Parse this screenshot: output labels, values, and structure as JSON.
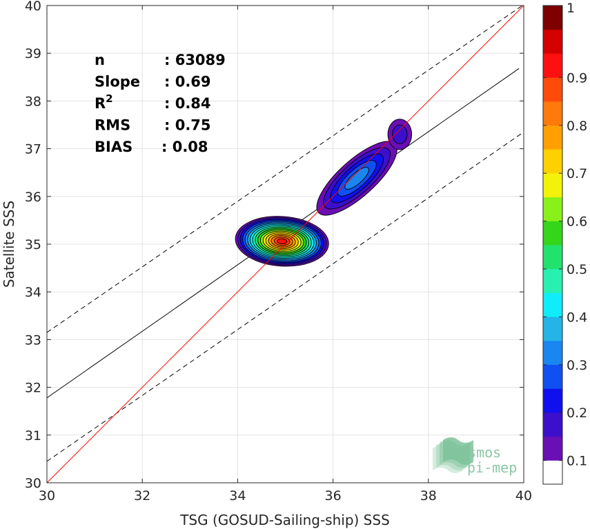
{
  "chart_data": {
    "type": "scatter",
    "subtype": "density-contour",
    "xlabel": "TSG (GOSUD-Sailing-ship) SSS",
    "ylabel": "Satellite SSS",
    "xlim": [
      30,
      40
    ],
    "ylim": [
      30,
      40
    ],
    "xticks": [
      30,
      32,
      34,
      36,
      38,
      40
    ],
    "yticks": [
      30,
      31,
      32,
      33,
      34,
      35,
      36,
      37,
      38,
      39,
      40
    ],
    "grid": true,
    "stats": [
      {
        "key": "n",
        "value": ": 63089"
      },
      {
        "key": "Slope",
        "value": ": 0.69"
      },
      {
        "key": "R",
        "sup": "2",
        "value": ": 0.84"
      },
      {
        "key": "RMS",
        "value": ": 0.75"
      },
      {
        "key": "BIAS",
        "value": ": 0.08"
      }
    ],
    "lines": [
      {
        "kind": "one-to-one",
        "color": "#ff0000",
        "style": "solid",
        "points": [
          [
            30,
            30
          ],
          [
            40,
            40
          ]
        ]
      },
      {
        "kind": "regression",
        "color": "#000000",
        "style": "solid",
        "points": [
          [
            30,
            31.78
          ],
          [
            39.9,
            38.68
          ]
        ]
      },
      {
        "kind": "upper-bound",
        "color": "#000000",
        "style": "dashed",
        "points": [
          [
            30,
            33.15
          ],
          [
            40,
            40.02
          ]
        ]
      },
      {
        "kind": "lower-bound",
        "color": "#000000",
        "style": "dashed",
        "points": [
          [
            30,
            30.45
          ],
          [
            40,
            37.35
          ]
        ]
      }
    ],
    "density_clusters": [
      {
        "cx": 34.93,
        "cy": 35.06,
        "rx": 0.98,
        "ry": 0.52,
        "rot": -4,
        "levels": 17
      },
      {
        "cx": 36.5,
        "cy": 36.38,
        "rx": 1.08,
        "ry": 0.38,
        "rot": 42,
        "levels": 5
      },
      {
        "cx": 37.4,
        "cy": 37.3,
        "rx": 0.25,
        "ry": 0.32,
        "rot": 0,
        "levels": 2
      }
    ],
    "colorbar": {
      "min": 0,
      "max": 1,
      "ticks": [
        0.1,
        0.2,
        0.3,
        0.4,
        0.5,
        0.6,
        0.7,
        0.8,
        0.9,
        1
      ],
      "tick_labels": [
        "0.1",
        "0.2",
        "0.3",
        "0.4",
        "0.5",
        "0.6",
        "0.7",
        "0.8",
        "0.9",
        "1"
      ],
      "colors": [
        "#ffffff",
        "#6a0fb3",
        "#3b0fcc",
        "#1010ee",
        "#1050f2",
        "#1a86f0",
        "#24b4e6",
        "#10ecf8",
        "#28f0b0",
        "#22e26e",
        "#34d61a",
        "#8af01a",
        "#f2f20a",
        "#ffd000",
        "#ffa000",
        "#ff7a0a",
        "#ff4a0a",
        "#ff1010",
        "#d40000",
        "#7e0000"
      ]
    },
    "watermark": {
      "line1": "smos",
      "line2": "pi-mep"
    }
  }
}
